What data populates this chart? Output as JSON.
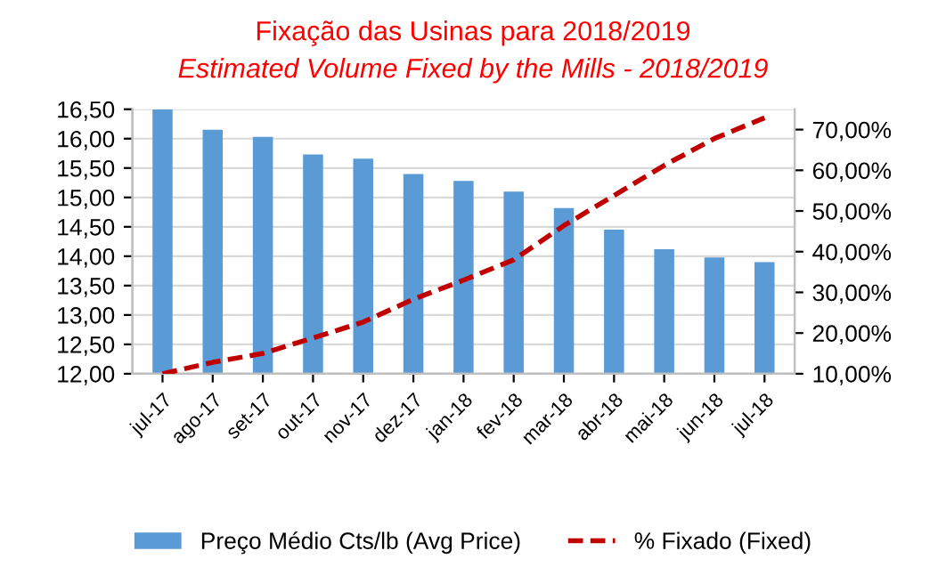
{
  "chart_data": {
    "type": "bar",
    "title": "Fixação das Usinas para 2018/2019",
    "subtitle": "Estimated Volume Fixed by the Mills - 2018/2019",
    "categories": [
      "jul-17",
      "ago-17",
      "set-17",
      "out-17",
      "nov-17",
      "dez-17",
      "jan-18",
      "fev-18",
      "mar-18",
      "abr-18",
      "mai-18",
      "jun-18",
      "jul-18"
    ],
    "series": [
      {
        "name": "Preço Médio Cts/lb (Avg Price)",
        "color": "#5b9bd5",
        "values": [
          16.5,
          16.15,
          16.03,
          15.73,
          15.66,
          15.4,
          15.28,
          15.1,
          14.82,
          14.45,
          14.12,
          13.98,
          13.9
        ]
      },
      {
        "name": "% Fixado (Fixed)",
        "type": "line",
        "axis": "y2",
        "color": "#c00000",
        "line_style": "dashed",
        "values": [
          10.0,
          12.8,
          15.0,
          18.8,
          22.7,
          28.3,
          33.0,
          38.0,
          46.4,
          53.8,
          61.2,
          67.8,
          72.9
        ]
      }
    ],
    "ylim": [
      12,
      16.5
    ],
    "yticks": [
      {
        "value": 12,
        "label": "12,00"
      },
      {
        "value": 12.5,
        "label": "12,50"
      },
      {
        "value": 13,
        "label": "13,00"
      },
      {
        "value": 13.5,
        "label": "13,50"
      },
      {
        "value": 14,
        "label": "14,00"
      },
      {
        "value": 14.5,
        "label": "14,50"
      },
      {
        "value": 15,
        "label": "15,00"
      },
      {
        "value": 15.5,
        "label": "15,50"
      },
      {
        "value": 16,
        "label": "16,00"
      },
      {
        "value": 16.5,
        "label": "16,50"
      }
    ],
    "y2lim": [
      10,
      75
    ],
    "y2ticks": [
      {
        "value": 10,
        "label": "10,00%"
      },
      {
        "value": 20,
        "label": "20,00%"
      },
      {
        "value": 30,
        "label": "30,00%"
      },
      {
        "value": 40,
        "label": "40,00%"
      },
      {
        "value": 50,
        "label": "50,00%"
      },
      {
        "value": 60,
        "label": "60,00%"
      },
      {
        "value": 70,
        "label": "70,00%"
      }
    ],
    "grid": "y",
    "legend": "bottom"
  }
}
